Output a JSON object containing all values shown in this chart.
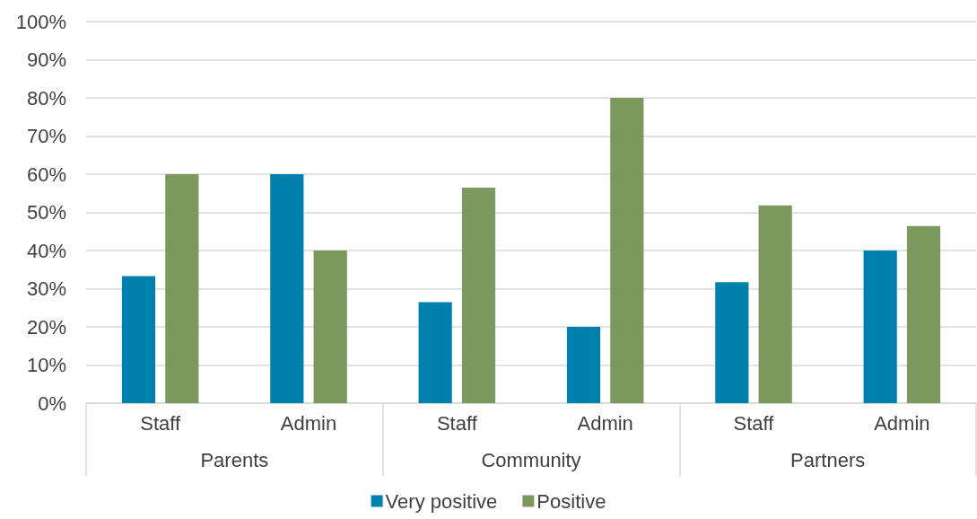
{
  "chart_data": {
    "type": "bar",
    "categories": [
      "Staff",
      "Admin",
      "Staff",
      "Admin",
      "Staff",
      "Admin"
    ],
    "annotations": [
      "Parents",
      "Community",
      "Partners"
    ],
    "series": [
      {
        "name": "Very positive",
        "color": "#0080ad",
        "values": [
          33.3,
          60,
          26.5,
          20,
          31.7,
          40
        ]
      },
      {
        "name": "Positive",
        "color": "#7b985d",
        "values": [
          60,
          40,
          56.5,
          80,
          51.8,
          46.4
        ]
      }
    ],
    "ylim": [
      0,
      100
    ],
    "yticks": [
      {
        "value": 0,
        "label": "0%"
      },
      {
        "value": 10,
        "label": "10%"
      },
      {
        "value": 20,
        "label": "20%"
      },
      {
        "value": 30,
        "label": "30%"
      },
      {
        "value": 40,
        "label": "40%"
      },
      {
        "value": 50,
        "label": "50%"
      },
      {
        "value": 60,
        "label": "60%"
      },
      {
        "value": 70,
        "label": "70%"
      },
      {
        "value": 80,
        "label": "80%"
      },
      {
        "value": 90,
        "label": "90%"
      },
      {
        "value": 100,
        "label": "100%"
      }
    ],
    "grid": "y",
    "legend": "bottom"
  }
}
